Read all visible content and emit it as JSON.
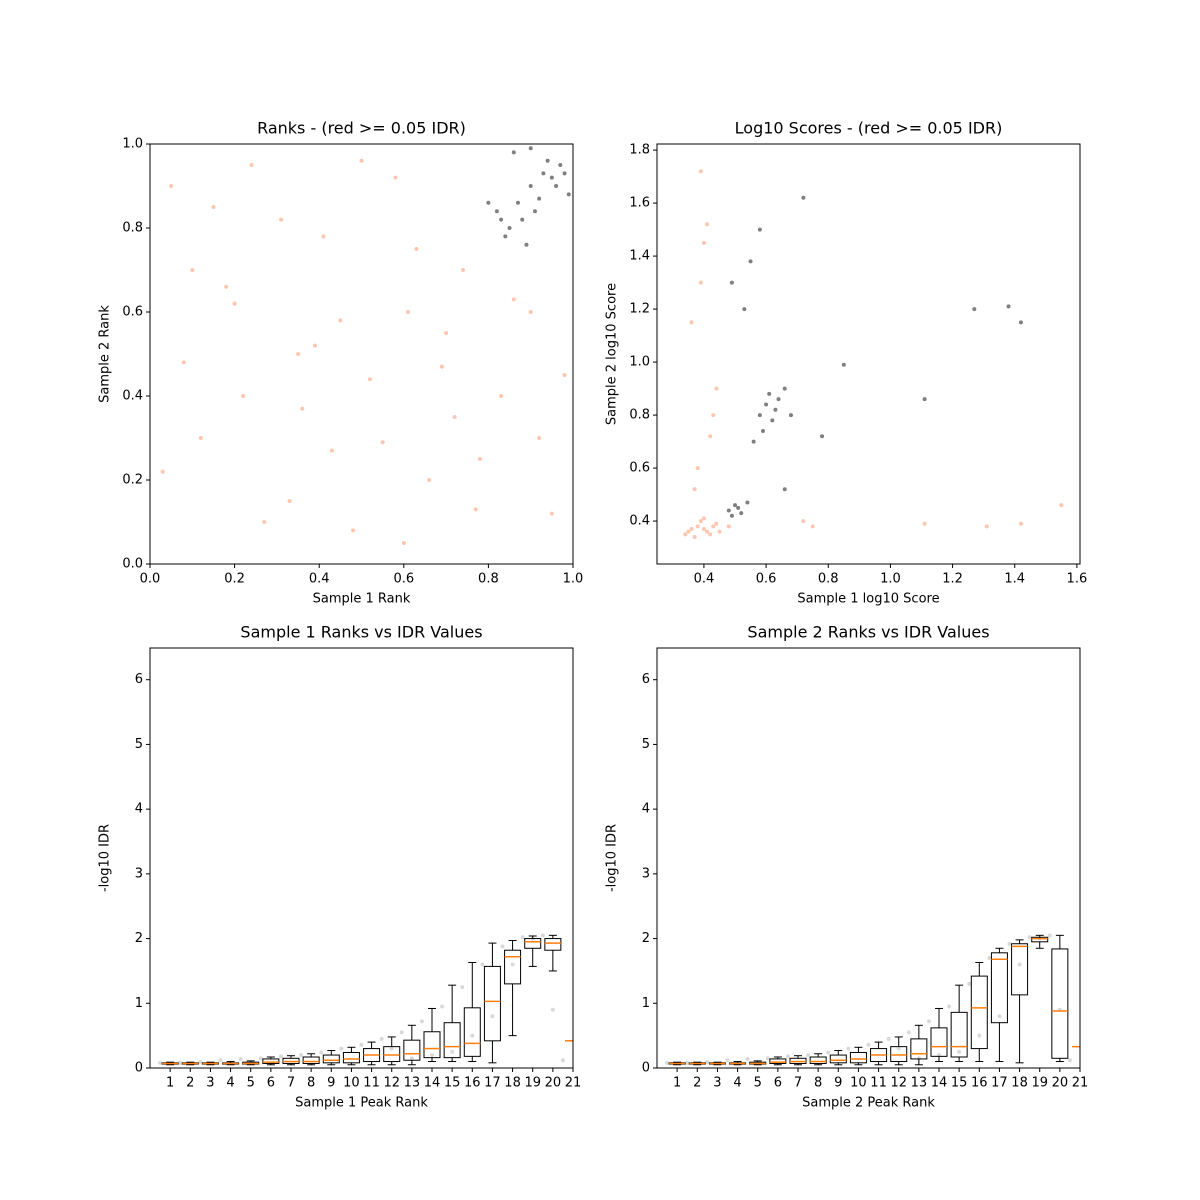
{
  "chart_data": [
    {
      "type": "scatter",
      "title": "Ranks - (red >= 0.05 IDR)",
      "xlabel": "Sample 1 Rank",
      "ylabel": "Sample 2 Rank",
      "xlim": [
        0,
        1
      ],
      "ylim": [
        0,
        1
      ],
      "xticks": [
        {
          "value": 0,
          "label": "0.0"
        },
        {
          "value": 0.2,
          "label": "0.2"
        },
        {
          "value": 0.4,
          "label": "0.4"
        },
        {
          "value": 0.6,
          "label": "0.6"
        },
        {
          "value": 0.8,
          "label": "0.8"
        },
        {
          "value": 1,
          "label": "1.0"
        }
      ],
      "yticks": [
        {
          "value": 0,
          "label": "0.0"
        },
        {
          "value": 0.2,
          "label": "0.2"
        },
        {
          "value": 0.4,
          "label": "0.4"
        },
        {
          "value": 0.6,
          "label": "0.6"
        },
        {
          "value": 0.8,
          "label": "0.8"
        },
        {
          "value": 1,
          "label": "1.0"
        }
      ],
      "series": [
        {
          "color": "#fc8d62",
          "x": [
            0.05,
            0.12,
            0.2,
            0.33,
            0.41,
            0.52,
            0.6,
            0.7,
            0.78,
            0.9,
            0.08,
            0.15,
            0.27,
            0.36,
            0.45,
            0.58,
            0.66,
            0.74,
            0.83,
            0.95,
            0.03,
            0.18,
            0.24,
            0.39,
            0.48,
            0.55,
            0.63,
            0.72,
            0.86,
            0.98,
            0.1,
            0.22,
            0.31,
            0.43,
            0.5,
            0.61,
            0.69,
            0.77,
            0.92,
            0.35
          ],
          "y": [
            0.9,
            0.3,
            0.62,
            0.15,
            0.78,
            0.44,
            0.05,
            0.55,
            0.25,
            0.6,
            0.48,
            0.85,
            0.1,
            0.37,
            0.58,
            0.92,
            0.2,
            0.7,
            0.4,
            0.12,
            0.22,
            0.66,
            0.95,
            0.52,
            0.08,
            0.29,
            0.75,
            0.35,
            0.63,
            0.45,
            0.7,
            0.4,
            0.82,
            0.27,
            0.96,
            0.6,
            0.47,
            0.13,
            0.3,
            0.5
          ]
        },
        {
          "color": "#000000",
          "x": [
            0.82,
            0.85,
            0.88,
            0.9,
            0.93,
            0.95,
            0.97,
            0.99,
            0.84,
            0.87,
            0.91,
            0.94,
            0.96,
            0.98,
            0.86,
            0.89,
            0.92,
            0.8,
            0.83,
            0.9
          ],
          "y": [
            0.84,
            0.8,
            0.82,
            0.9,
            0.93,
            0.92,
            0.95,
            0.88,
            0.78,
            0.86,
            0.84,
            0.96,
            0.9,
            0.93,
            0.98,
            0.76,
            0.87,
            0.86,
            0.82,
            0.99
          ]
        }
      ]
    },
    {
      "type": "scatter",
      "title": "Log10 Scores - (red >= 0.05 IDR)",
      "xlabel": "Sample 1 log10 Score",
      "ylabel": "Sample 2 log10 Score",
      "xlim": [
        0.249,
        1.61
      ],
      "ylim": [
        0.238,
        1.823
      ],
      "xticks": [
        0.4,
        0.6,
        0.8,
        {
          "value": 1,
          "label": "1.0"
        },
        1.2,
        1.4,
        1.6
      ],
      "yticks": [
        0.4,
        0.6,
        0.8,
        {
          "value": 1,
          "label": "1.0"
        },
        1.2,
        1.4,
        1.6,
        1.8
      ],
      "series": [
        {
          "color": "#fc8d62",
          "x": [
            0.35,
            0.38,
            0.4,
            0.42,
            0.44,
            0.37,
            0.39,
            0.41,
            0.43,
            0.36,
            0.4,
            0.45,
            0.48,
            0.34,
            0.38,
            0.42,
            0.36,
            0.4,
            0.44,
            0.39,
            0.37,
            0.41,
            0.43,
            0.39,
            0.72,
            1.11,
            1.31,
            1.55,
            0.75,
            1.42
          ],
          "y": [
            0.36,
            0.38,
            0.37,
            0.35,
            0.39,
            0.34,
            0.4,
            0.36,
            0.38,
            0.37,
            0.41,
            0.36,
            0.38,
            0.35,
            0.6,
            0.72,
            1.15,
            1.45,
            0.9,
            1.3,
            0.52,
            1.52,
            0.8,
            1.72,
            0.4,
            0.39,
            0.38,
            0.46,
            0.38,
            0.39
          ]
        },
        {
          "color": "#000000",
          "x": [
            0.48,
            0.5,
            0.52,
            0.54,
            0.49,
            0.51,
            0.58,
            0.6,
            0.62,
            0.64,
            0.66,
            0.59,
            0.63,
            0.61,
            0.56,
            0.68,
            0.55,
            0.53,
            0.49,
            0.72,
            0.85,
            1.11,
            1.27,
            1.38,
            1.42,
            0.58,
            0.66,
            0.78
          ],
          "y": [
            0.44,
            0.46,
            0.43,
            0.47,
            0.42,
            0.45,
            0.8,
            0.84,
            0.78,
            0.86,
            0.9,
            0.74,
            0.82,
            0.88,
            0.7,
            0.8,
            1.38,
            1.2,
            1.3,
            1.62,
            0.99,
            0.86,
            1.2,
            1.21,
            1.15,
            1.5,
            0.52,
            0.72
          ]
        }
      ]
    },
    {
      "type": "box",
      "title": "Sample 1 Ranks vs IDR Values",
      "xlabel": "Sample 1 Peak Rank",
      "ylabel": "-log10 IDR",
      "xlim": [
        0,
        21
      ],
      "ylim": [
        0,
        6.49
      ],
      "xticks": [
        1,
        2,
        3,
        4,
        5,
        6,
        7,
        8,
        9,
        10,
        11,
        12,
        13,
        14,
        15,
        16,
        17,
        18,
        19,
        20,
        21
      ],
      "yticks": [
        0,
        1,
        2,
        3,
        4,
        5,
        6
      ],
      "points": {
        "color": "#000000",
        "x": [
          0.5,
          1.5,
          2.5,
          3.5,
          4.5,
          5.5,
          6.5,
          7.5,
          8.5,
          9.5,
          10.5,
          11.5,
          12.5,
          13.5,
          14.5,
          15.5,
          16.5,
          17.5,
          18.5,
          19.5,
          20.5,
          14,
          15,
          16,
          17,
          18,
          19,
          12,
          13,
          20
        ],
        "y": [
          0.08,
          0.08,
          0.09,
          0.12,
          0.14,
          0.15,
          0.18,
          0.2,
          0.24,
          0.3,
          0.36,
          0.45,
          0.55,
          0.72,
          0.95,
          1.25,
          1.6,
          1.88,
          2.02,
          2.05,
          0.12,
          0.2,
          0.25,
          0.5,
          0.8,
          1.6,
          2.0,
          0.3,
          0.15,
          0.9
        ]
      },
      "median_color": "#ff7f0e",
      "boxes": [
        [
          0.05,
          0.06,
          0.07,
          0.08,
          0.09
        ],
        [
          0.05,
          0.06,
          0.07,
          0.08,
          0.09
        ],
        [
          0.05,
          0.06,
          0.07,
          0.08,
          0.09
        ],
        [
          0.05,
          0.06,
          0.07,
          0.08,
          0.1
        ],
        [
          0.05,
          0.06,
          0.07,
          0.09,
          0.11
        ],
        [
          0.05,
          0.07,
          0.09,
          0.14,
          0.17
        ],
        [
          0.05,
          0.07,
          0.1,
          0.15,
          0.19
        ],
        [
          0.05,
          0.07,
          0.1,
          0.17,
          0.22
        ],
        [
          0.05,
          0.08,
          0.12,
          0.2,
          0.27
        ],
        [
          0.05,
          0.08,
          0.14,
          0.24,
          0.32
        ],
        [
          0.05,
          0.1,
          0.2,
          0.3,
          0.4
        ],
        [
          0.05,
          0.1,
          0.2,
          0.33,
          0.48
        ],
        [
          0.05,
          0.12,
          0.22,
          0.43,
          0.66
        ],
        [
          0.1,
          0.16,
          0.3,
          0.56,
          0.92
        ],
        [
          0.1,
          0.16,
          0.33,
          0.7,
          1.28
        ],
        [
          0.1,
          0.18,
          0.38,
          0.93,
          1.63
        ],
        [
          0.08,
          0.42,
          1.03,
          1.57,
          1.93
        ],
        [
          0.5,
          1.3,
          1.72,
          1.82,
          1.97
        ],
        [
          1.57,
          1.85,
          1.95,
          2.0,
          2.04
        ],
        [
          1.5,
          1.82,
          1.93,
          2.0,
          2.05
        ],
        [
          0.42,
          0.42,
          0.42,
          0.42,
          0.42
        ]
      ]
    },
    {
      "type": "box",
      "title": "Sample 2 Ranks vs IDR Values",
      "xlabel": "Sample 2 Peak Rank",
      "ylabel": "-log10 IDR",
      "xlim": [
        0,
        21
      ],
      "ylim": [
        0,
        6.49
      ],
      "xticks": [
        1,
        2,
        3,
        4,
        5,
        6,
        7,
        8,
        9,
        10,
        11,
        12,
        13,
        14,
        15,
        16,
        17,
        18,
        19,
        20,
        21
      ],
      "yticks": [
        0,
        1,
        2,
        3,
        4,
        5,
        6
      ],
      "points": {
        "color": "#000000",
        "x": [
          0.5,
          1.5,
          2.5,
          3.5,
          4.5,
          5.5,
          6.5,
          7.5,
          8.5,
          9.5,
          10.5,
          11.5,
          12.5,
          13.5,
          14.5,
          15.5,
          16.5,
          17.5,
          18.5,
          19.5,
          20.5,
          14,
          15,
          16,
          17,
          18,
          19,
          12,
          13,
          20
        ],
        "y": [
          0.08,
          0.08,
          0.09,
          0.12,
          0.14,
          0.15,
          0.18,
          0.2,
          0.24,
          0.3,
          0.36,
          0.45,
          0.55,
          0.72,
          0.95,
          1.3,
          1.7,
          1.92,
          2.02,
          2.05,
          0.12,
          0.2,
          0.25,
          0.5,
          0.8,
          1.6,
          2.0,
          0.3,
          0.15,
          0.9
        ]
      },
      "median_color": "#ff7f0e",
      "boxes": [
        [
          0.05,
          0.06,
          0.07,
          0.08,
          0.09
        ],
        [
          0.05,
          0.06,
          0.07,
          0.08,
          0.09
        ],
        [
          0.05,
          0.06,
          0.07,
          0.08,
          0.09
        ],
        [
          0.05,
          0.06,
          0.07,
          0.08,
          0.1
        ],
        [
          0.05,
          0.06,
          0.07,
          0.09,
          0.11
        ],
        [
          0.05,
          0.07,
          0.09,
          0.14,
          0.17
        ],
        [
          0.05,
          0.07,
          0.1,
          0.15,
          0.19
        ],
        [
          0.05,
          0.07,
          0.1,
          0.17,
          0.22
        ],
        [
          0.05,
          0.08,
          0.12,
          0.2,
          0.27
        ],
        [
          0.05,
          0.08,
          0.14,
          0.24,
          0.32
        ],
        [
          0.05,
          0.1,
          0.2,
          0.3,
          0.4
        ],
        [
          0.05,
          0.1,
          0.2,
          0.33,
          0.48
        ],
        [
          0.05,
          0.14,
          0.22,
          0.45,
          0.66
        ],
        [
          0.1,
          0.18,
          0.33,
          0.62,
          0.92
        ],
        [
          0.1,
          0.17,
          0.33,
          0.86,
          1.28
        ],
        [
          0.1,
          0.3,
          0.93,
          1.42,
          1.63
        ],
        [
          0.1,
          0.7,
          1.68,
          1.78,
          1.85
        ],
        [
          0.08,
          1.13,
          1.88,
          1.92,
          1.98
        ],
        [
          1.85,
          1.95,
          2.0,
          2.02,
          2.05
        ],
        [
          0.1,
          0.15,
          0.88,
          1.84,
          2.05
        ],
        [
          0.33,
          0.33,
          0.33,
          0.33,
          0.33
        ]
      ]
    }
  ]
}
